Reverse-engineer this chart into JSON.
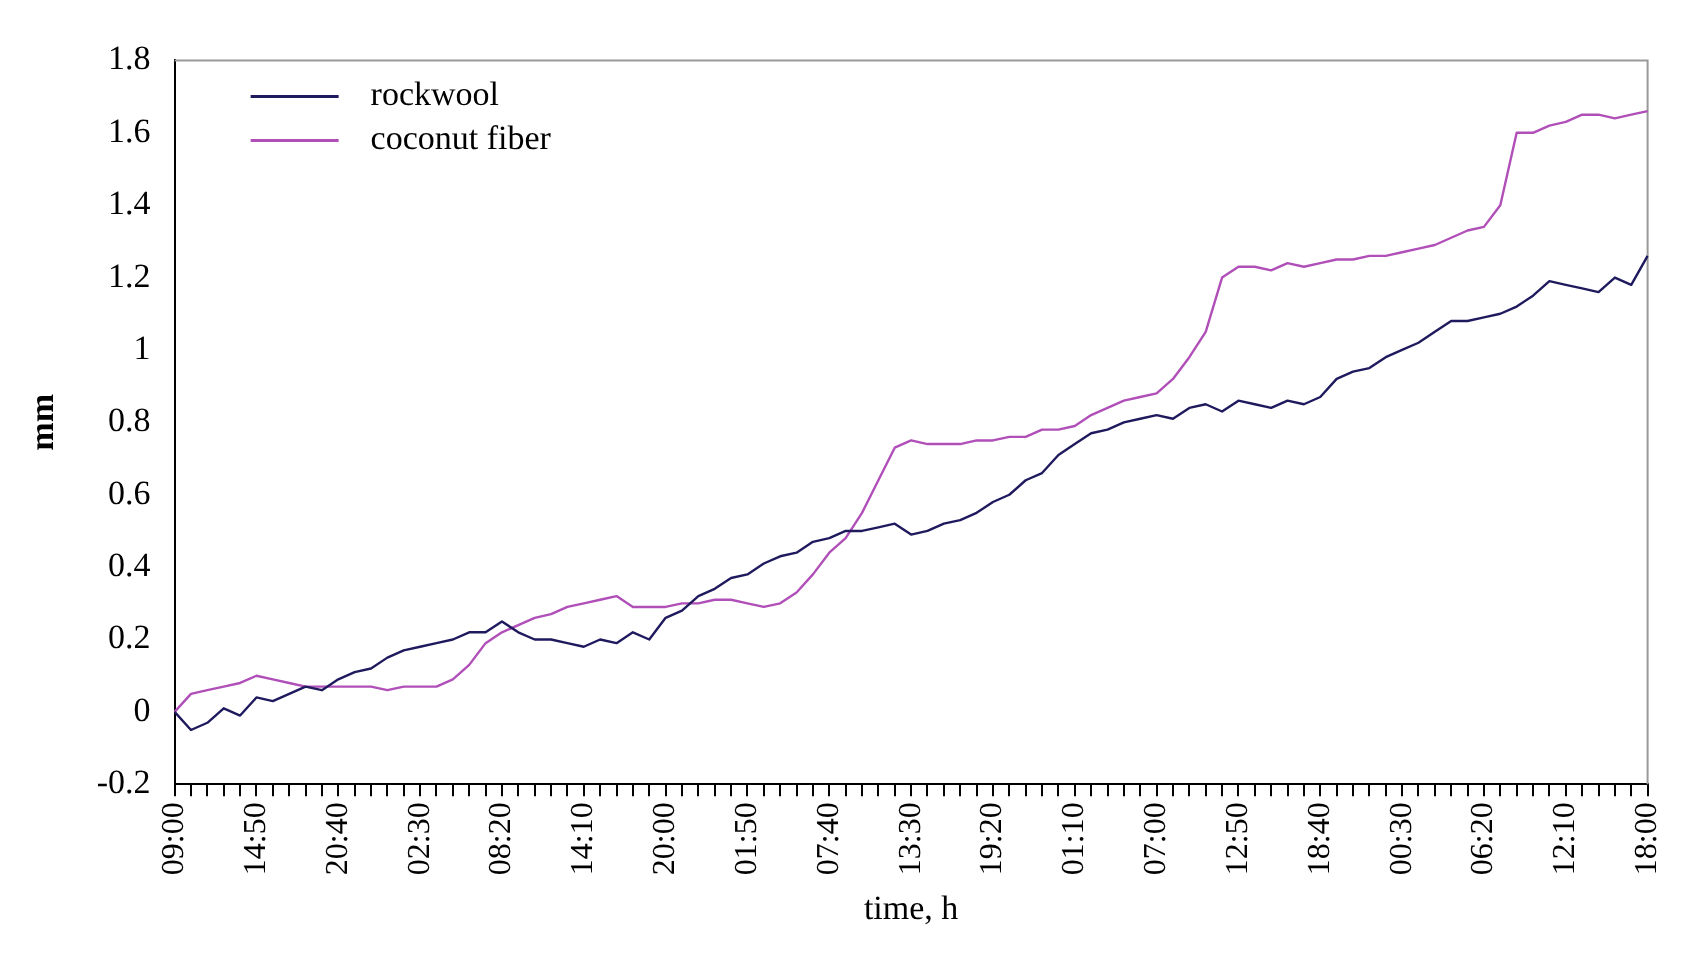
{
  "chart_data": {
    "type": "line",
    "xlabel": "time, h",
    "ylabel": "mm",
    "categories": [
      "09:00",
      null,
      null,
      null,
      null,
      "14:50",
      null,
      null,
      null,
      null,
      "20:40",
      null,
      null,
      null,
      null,
      "02:30",
      null,
      null,
      null,
      null,
      "08:20",
      null,
      null,
      null,
      null,
      "14:10",
      null,
      null,
      null,
      null,
      "20:00",
      null,
      null,
      null,
      null,
      "01:50",
      null,
      null,
      null,
      null,
      "07:40",
      null,
      null,
      null,
      null,
      "13:30",
      null,
      null,
      null,
      null,
      "19:20",
      null,
      null,
      null,
      null,
      "01:10",
      null,
      null,
      null,
      null,
      "07:00",
      null,
      null,
      null,
      null,
      "12:50",
      null,
      null,
      null,
      null,
      "18:40",
      null,
      null,
      null,
      null,
      "00:30",
      null,
      null,
      null,
      null,
      "06:20",
      null,
      null,
      null,
      null,
      "12:10",
      null,
      null,
      null,
      null,
      "18:00"
    ],
    "series": [
      {
        "name": "rockwool",
        "color": "#1f1a5e",
        "values": [
          0,
          -0.05,
          -0.03,
          0.01,
          -0.01,
          0.04,
          0.03,
          0.05,
          0.07,
          0.06,
          0.09,
          0.11,
          0.12,
          0.15,
          0.17,
          0.18,
          0.19,
          0.2,
          0.22,
          0.22,
          0.25,
          0.22,
          0.2,
          0.2,
          0.19,
          0.18,
          0.2,
          0.19,
          0.22,
          0.2,
          0.26,
          0.28,
          0.32,
          0.34,
          0.37,
          0.38,
          0.41,
          0.43,
          0.44,
          0.47,
          0.48,
          0.5,
          0.5,
          0.51,
          0.52,
          0.49,
          0.5,
          0.52,
          0.53,
          0.55,
          0.58,
          0.6,
          0.64,
          0.66,
          0.71,
          0.74,
          0.77,
          0.78,
          0.8,
          0.81,
          0.82,
          0.81,
          0.84,
          0.85,
          0.83,
          0.86,
          0.85,
          0.84,
          0.86,
          0.85,
          0.87,
          0.92,
          0.94,
          0.95,
          0.98,
          1.0,
          1.02,
          1.05,
          1.08,
          1.08,
          1.09,
          1.1,
          1.12,
          1.15,
          1.19,
          1.18,
          1.17,
          1.16,
          1.2,
          1.18,
          1.26
        ]
      },
      {
        "name": "coconut fiber",
        "color": "#b04fb8",
        "values": [
          0,
          0.05,
          0.06,
          0.07,
          0.08,
          0.1,
          0.09,
          0.08,
          0.07,
          0.07,
          0.07,
          0.07,
          0.07,
          0.06,
          0.07,
          0.07,
          0.07,
          0.09,
          0.13,
          0.19,
          0.22,
          0.24,
          0.26,
          0.27,
          0.29,
          0.3,
          0.31,
          0.32,
          0.29,
          0.29,
          0.29,
          0.3,
          0.3,
          0.31,
          0.31,
          0.3,
          0.29,
          0.3,
          0.33,
          0.38,
          0.44,
          0.48,
          0.55,
          0.64,
          0.73,
          0.75,
          0.74,
          0.74,
          0.74,
          0.75,
          0.75,
          0.76,
          0.76,
          0.78,
          0.78,
          0.79,
          0.82,
          0.84,
          0.86,
          0.87,
          0.88,
          0.92,
          0.98,
          1.05,
          1.2,
          1.23,
          1.23,
          1.22,
          1.24,
          1.23,
          1.24,
          1.25,
          1.25,
          1.26,
          1.26,
          1.27,
          1.28,
          1.29,
          1.31,
          1.33,
          1.34,
          1.4,
          1.6,
          1.6,
          1.62,
          1.63,
          1.65,
          1.65,
          1.64,
          1.65,
          1.66
        ]
      }
    ],
    "ylim": [
      -0.2,
      1.8
    ],
    "yticks": [
      -0.2,
      0,
      0.2,
      0.4,
      0.6,
      0.8,
      1,
      1.2,
      1.4,
      1.6,
      1.8
    ],
    "grid": false,
    "legend": "top left",
    "marker": "none",
    "line_style": "solid"
  }
}
